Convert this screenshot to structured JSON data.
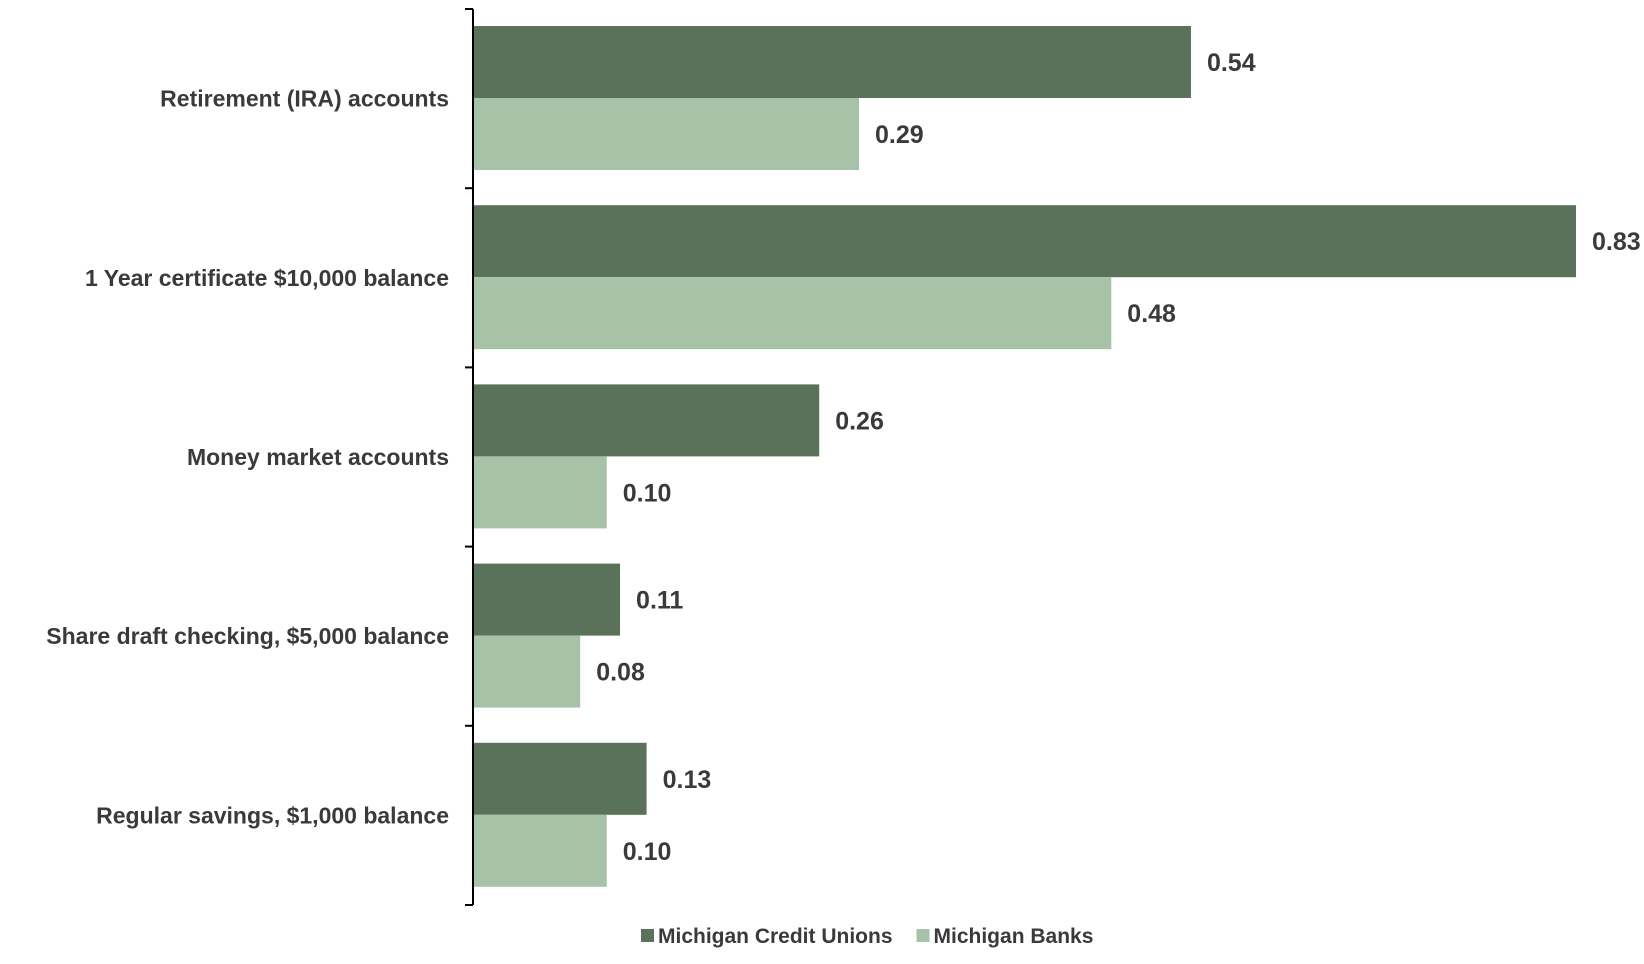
{
  "chart_data": {
    "type": "bar",
    "orientation": "horizontal",
    "categories": [
      "Retirement (IRA) accounts",
      "1 Year certificate $10,000 balance",
      "Money market accounts",
      "Share draft checking, $5,000 balance",
      "Regular savings, $1,000 balance"
    ],
    "series": [
      {
        "name": "Michigan Credit Unions",
        "color": "#5a7259",
        "values": [
          0.54,
          0.83,
          0.26,
          0.11,
          0.13
        ],
        "labels": [
          "0.54",
          "0.83",
          "0.26",
          "0.11",
          "0.13"
        ]
      },
      {
        "name": "Michigan Banks",
        "color": "#a8c2a8",
        "values": [
          0.29,
          0.48,
          0.1,
          0.08,
          0.1
        ],
        "labels": [
          "0.29",
          "0.48",
          "0.10",
          "0.08",
          "0.10"
        ]
      }
    ],
    "xlim": [
      0,
      0.83
    ],
    "grid": false,
    "legend": "bottom-center",
    "title": "",
    "xlabel": "",
    "ylabel": ""
  }
}
